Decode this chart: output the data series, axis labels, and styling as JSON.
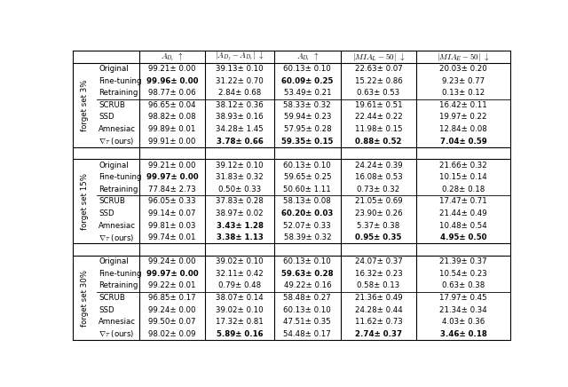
{
  "col_headers": [
    "$A_{D_r}$ $\\uparrow$",
    "$|A_{D_f} - A_{D_t}|$ $\\downarrow$",
    "$A_{D_t}$ $\\uparrow$",
    "$|MIA_L - 50|$ $\\downarrow$",
    "$|MIA_E - 50|$ $\\downarrow$"
  ],
  "row_labels_groups": [
    [
      "Original",
      "Fine-tuning",
      "Retraining",
      "SCRUB",
      "SSD",
      "Amnesiac",
      "$\\nabla\\tau$ (ours)"
    ],
    [
      "Original",
      "Fine-tuning",
      "Retraining",
      "SCRUB",
      "SSD",
      "Amnesiac",
      "$\\nabla\\tau$ (ours)"
    ],
    [
      "Original",
      "Fine-tuning",
      "Retraining",
      "SCRUB",
      "SSD",
      "Amnesiac",
      "$\\nabla\\tau$ (ours)"
    ]
  ],
  "group_labels": [
    "forget set 3%",
    "forget set 15%",
    "forget set 30%"
  ],
  "data": [
    [
      [
        "99.21± 0.00",
        "39.13± 0.10",
        "60.13± 0.10",
        "22.63± 0.07",
        "20.03± 0.20"
      ],
      [
        "**99.96± 0.00**",
        "31.22± 0.70",
        "**60.09± 0.25**",
        "15.22± 0.86",
        "9.23± 0.77"
      ],
      [
        "98.77± 0.06",
        "2.84± 0.68",
        "53.49± 0.21",
        "0.63± 0.53",
        "0.13± 0.12"
      ],
      [
        "96.65± 0.04",
        "38.12± 0.36",
        "58.33± 0.32",
        "19.61± 0.51",
        "16.42± 0.11"
      ],
      [
        "98.82± 0.08",
        "38.93± 0.16",
        "59.94± 0.23",
        "22.44± 0.22",
        "19.97± 0.22"
      ],
      [
        "99.89± 0.01",
        "34.28± 1.45",
        "57.95± 0.28",
        "11.98± 0.15",
        "12.84± 0.08"
      ],
      [
        "99.91± 0.00",
        "**3.78± 0.66**",
        "**59.35± 0.15**",
        "**0.88± 0.52**",
        "**7.04± 0.59**"
      ]
    ],
    [
      [
        "99.21± 0.00",
        "39.12± 0.10",
        "60.13± 0.10",
        "24.24± 0.39",
        "21.66± 0.32"
      ],
      [
        "**99.97± 0.00**",
        "31.83± 0.32",
        "59.65± 0.25",
        "16.08± 0.53",
        "10.15± 0.14"
      ],
      [
        "77.84± 2.73",
        "0.50± 0.33",
        "50.60± 1.11",
        "0.73± 0.32",
        "0.28± 0.18"
      ],
      [
        "96.05± 0.33",
        "37.83± 0.28",
        "58.13± 0.08",
        "21.05± 0.69",
        "17.47± 0.71"
      ],
      [
        "99.14± 0.07",
        "38.97± 0.02",
        "**60.20± 0.03**",
        "23.90± 0.26",
        "21.44± 0.49"
      ],
      [
        "99.81± 0.03",
        "**3.43± 1.28**",
        "52.07± 0.33",
        "5.37± 0.38",
        "10.48± 0.54"
      ],
      [
        "99.74± 0.01",
        "**3.38± 1.13**",
        "58.39± 0.32",
        "**0.95± 0.35**",
        "**4.95± 0.50**"
      ]
    ],
    [
      [
        "99.24± 0.00",
        "39.02± 0.10",
        "60.13± 0.10",
        "24.07± 0.37",
        "21.39± 0.37"
      ],
      [
        "**99.97± 0.00**",
        "32.11± 0.42",
        "**59.63± 0.28**",
        "16.32± 0.23",
        "10.54± 0.23"
      ],
      [
        "99.22± 0.01",
        "0.79± 0.48",
        "49.22± 0.16",
        "0.58± 0.13",
        "0.63± 0.38"
      ],
      [
        "96.85± 0.17",
        "38.07± 0.14",
        "58.48± 0.27",
        "21.36± 0.49",
        "17.97± 0.45"
      ],
      [
        "99.24± 0.00",
        "39.02± 0.10",
        "60.13± 0.10",
        "24.28± 0.44",
        "21.34± 0.34"
      ],
      [
        "99.50± 0.07",
        "17.32± 0.81",
        "47.51± 0.35",
        "11.62± 0.73",
        "4.03± 0.36"
      ],
      [
        "98.02± 0.09",
        "**5.89± 0.16**",
        "54.48± 0.17",
        "**2.74± 0.37**",
        "**3.46± 0.18**"
      ]
    ]
  ]
}
